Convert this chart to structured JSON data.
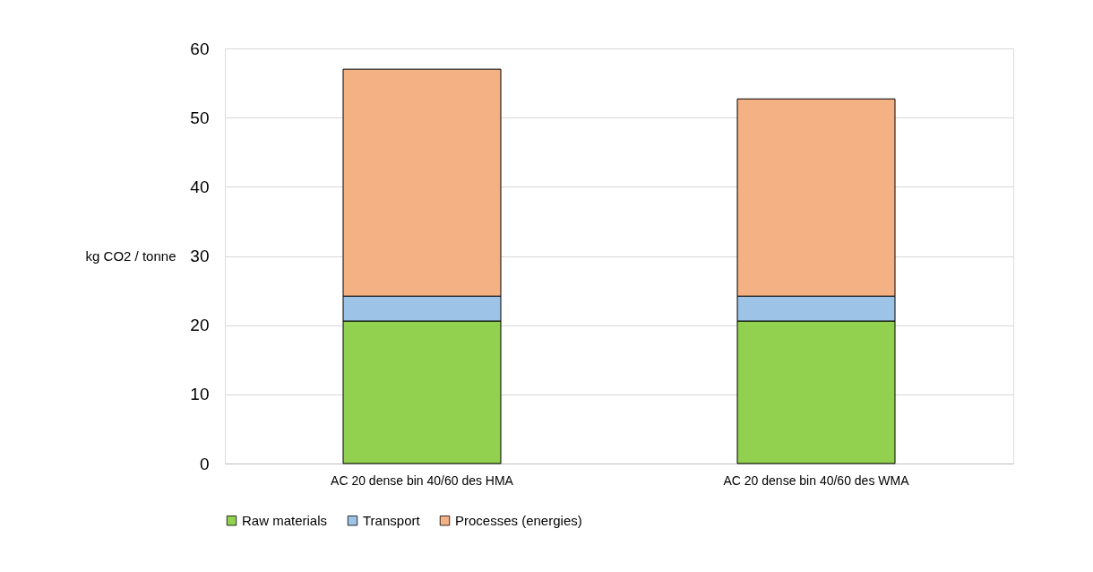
{
  "chart_data": {
    "type": "bar",
    "ylabel": "kg CO2 / tonne",
    "categories": [
      "AC 20 dense bin 40/60 des HMA",
      "AC 20 dense bin 40/60 des WMA"
    ],
    "stacked": true,
    "series": [
      {
        "name": "Raw materials",
        "color": "#92d050",
        "values": [
          20.6,
          20.6
        ]
      },
      {
        "name": "Transport",
        "color": "#9dc3e6",
        "values": [
          3.6,
          3.6
        ]
      },
      {
        "name": "Processes (energies)",
        "color": "#f4b183",
        "values": [
          32.8,
          28.5
        ]
      }
    ],
    "ylim": [
      0,
      60
    ],
    "yticks": [
      0,
      10,
      20,
      30,
      40,
      50,
      60
    ],
    "grid": "y",
    "legend": "bottom"
  }
}
